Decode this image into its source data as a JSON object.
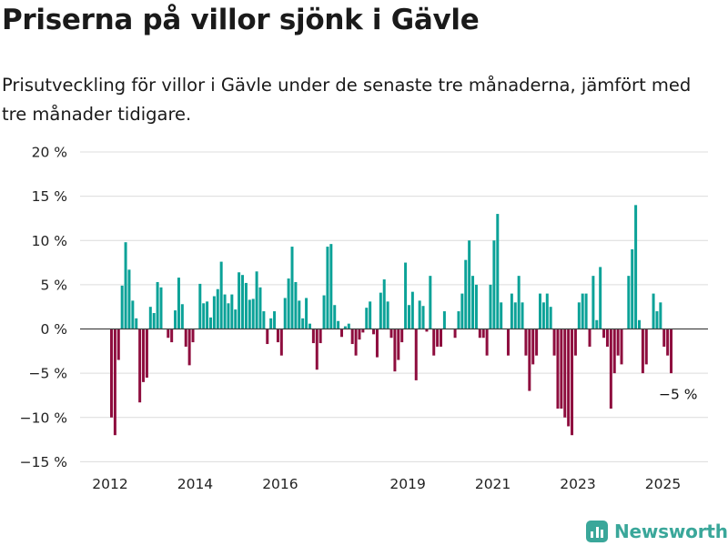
{
  "header": {
    "title": "Priserna på villor sjönk i Gävle",
    "subtitle": "Prisutveckling för villor i Gävle under de senaste tre månaderna, jämfört med tre månader tidigare."
  },
  "brand": {
    "name": "Newsworthy"
  },
  "colors": {
    "positive": "#0ba298",
    "negative": "#8e0d3e",
    "grid": "#dcdcdc",
    "zero": "#444444",
    "brand": "#3aa79a"
  },
  "chart_data": {
    "type": "bar",
    "title": "Priserna på villor sjönk i Gävle",
    "subtitle": "Prisutveckling för villor i Gävle under de senaste tre månaderna, jämfört med tre månader tidigare.",
    "xlabel": "",
    "ylabel": "",
    "ylim": [
      -15,
      20
    ],
    "yticks": [
      20,
      15,
      10,
      5,
      0,
      -5,
      -10,
      -15
    ],
    "ytick_labels": [
      "20 %",
      "15 %",
      "10 %",
      "5 %",
      "0 %",
      "−5 %",
      "−10 %",
      "−15 %"
    ],
    "xticks": [
      2012,
      2014,
      2016,
      2019,
      2021,
      2023,
      2025
    ],
    "xtick_labels": [
      "2012",
      "2014",
      "2016",
      "2019",
      "2021",
      "2023",
      "2025"
    ],
    "x_start": 2012,
    "x_step_years": 0.0833,
    "grid": true,
    "legend": "none",
    "annotation": {
      "text": "−5 %",
      "value": -5
    },
    "values": [
      -10,
      -12,
      -3.5,
      4.9,
      9.8,
      6.7,
      3.2,
      1.2,
      -8.3,
      -6,
      -5.5,
      2.5,
      1.8,
      5.3,
      4.7,
      0,
      -1,
      -1.5,
      2.1,
      5.8,
      2.8,
      -2,
      -4.1,
      -1.5,
      0,
      5.1,
      2.9,
      3.1,
      1.3,
      3.7,
      4.5,
      7.6,
      3.9,
      2.9,
      3.9,
      2.2,
      6.4,
      6.1,
      5.2,
      3.3,
      3.4,
      6.5,
      4.7,
      2,
      -1.7,
      1.2,
      2,
      -1.5,
      -3,
      3.5,
      5.7,
      9.3,
      5.3,
      3.2,
      1.2,
      3.5,
      0.6,
      -1.6,
      -4.6,
      -1.6,
      3.8,
      9.3,
      9.6,
      2.7,
      0.9,
      -0.9,
      0.3,
      0.6,
      -1.7,
      -3,
      -1.2,
      -0.4,
      2.4,
      3.1,
      -0.6,
      -3.2,
      4.1,
      5.6,
      3.1,
      -1,
      -4.8,
      -3.5,
      -1.5,
      7.5,
      2.7,
      4.2,
      -5.8,
      3.2,
      2.6,
      -0.3,
      6,
      -3,
      -2,
      -2,
      2,
      0,
      0,
      -1,
      2,
      4,
      7.8,
      10,
      6,
      5,
      -1,
      -1,
      -3,
      5,
      10,
      13,
      3,
      0,
      -3,
      4,
      3,
      6,
      3,
      -3,
      -7,
      -4,
      -3,
      4,
      3,
      4,
      2.5,
      -3,
      -9,
      -9,
      -10,
      -11,
      -12,
      -3,
      3,
      4,
      4,
      -2,
      6,
      1,
      7,
      -1,
      -2,
      -9,
      -5,
      -3,
      -4,
      0,
      6,
      9,
      14,
      1,
      -5,
      -4,
      0,
      4,
      2,
      3,
      -2,
      -3,
      -5
    ]
  }
}
